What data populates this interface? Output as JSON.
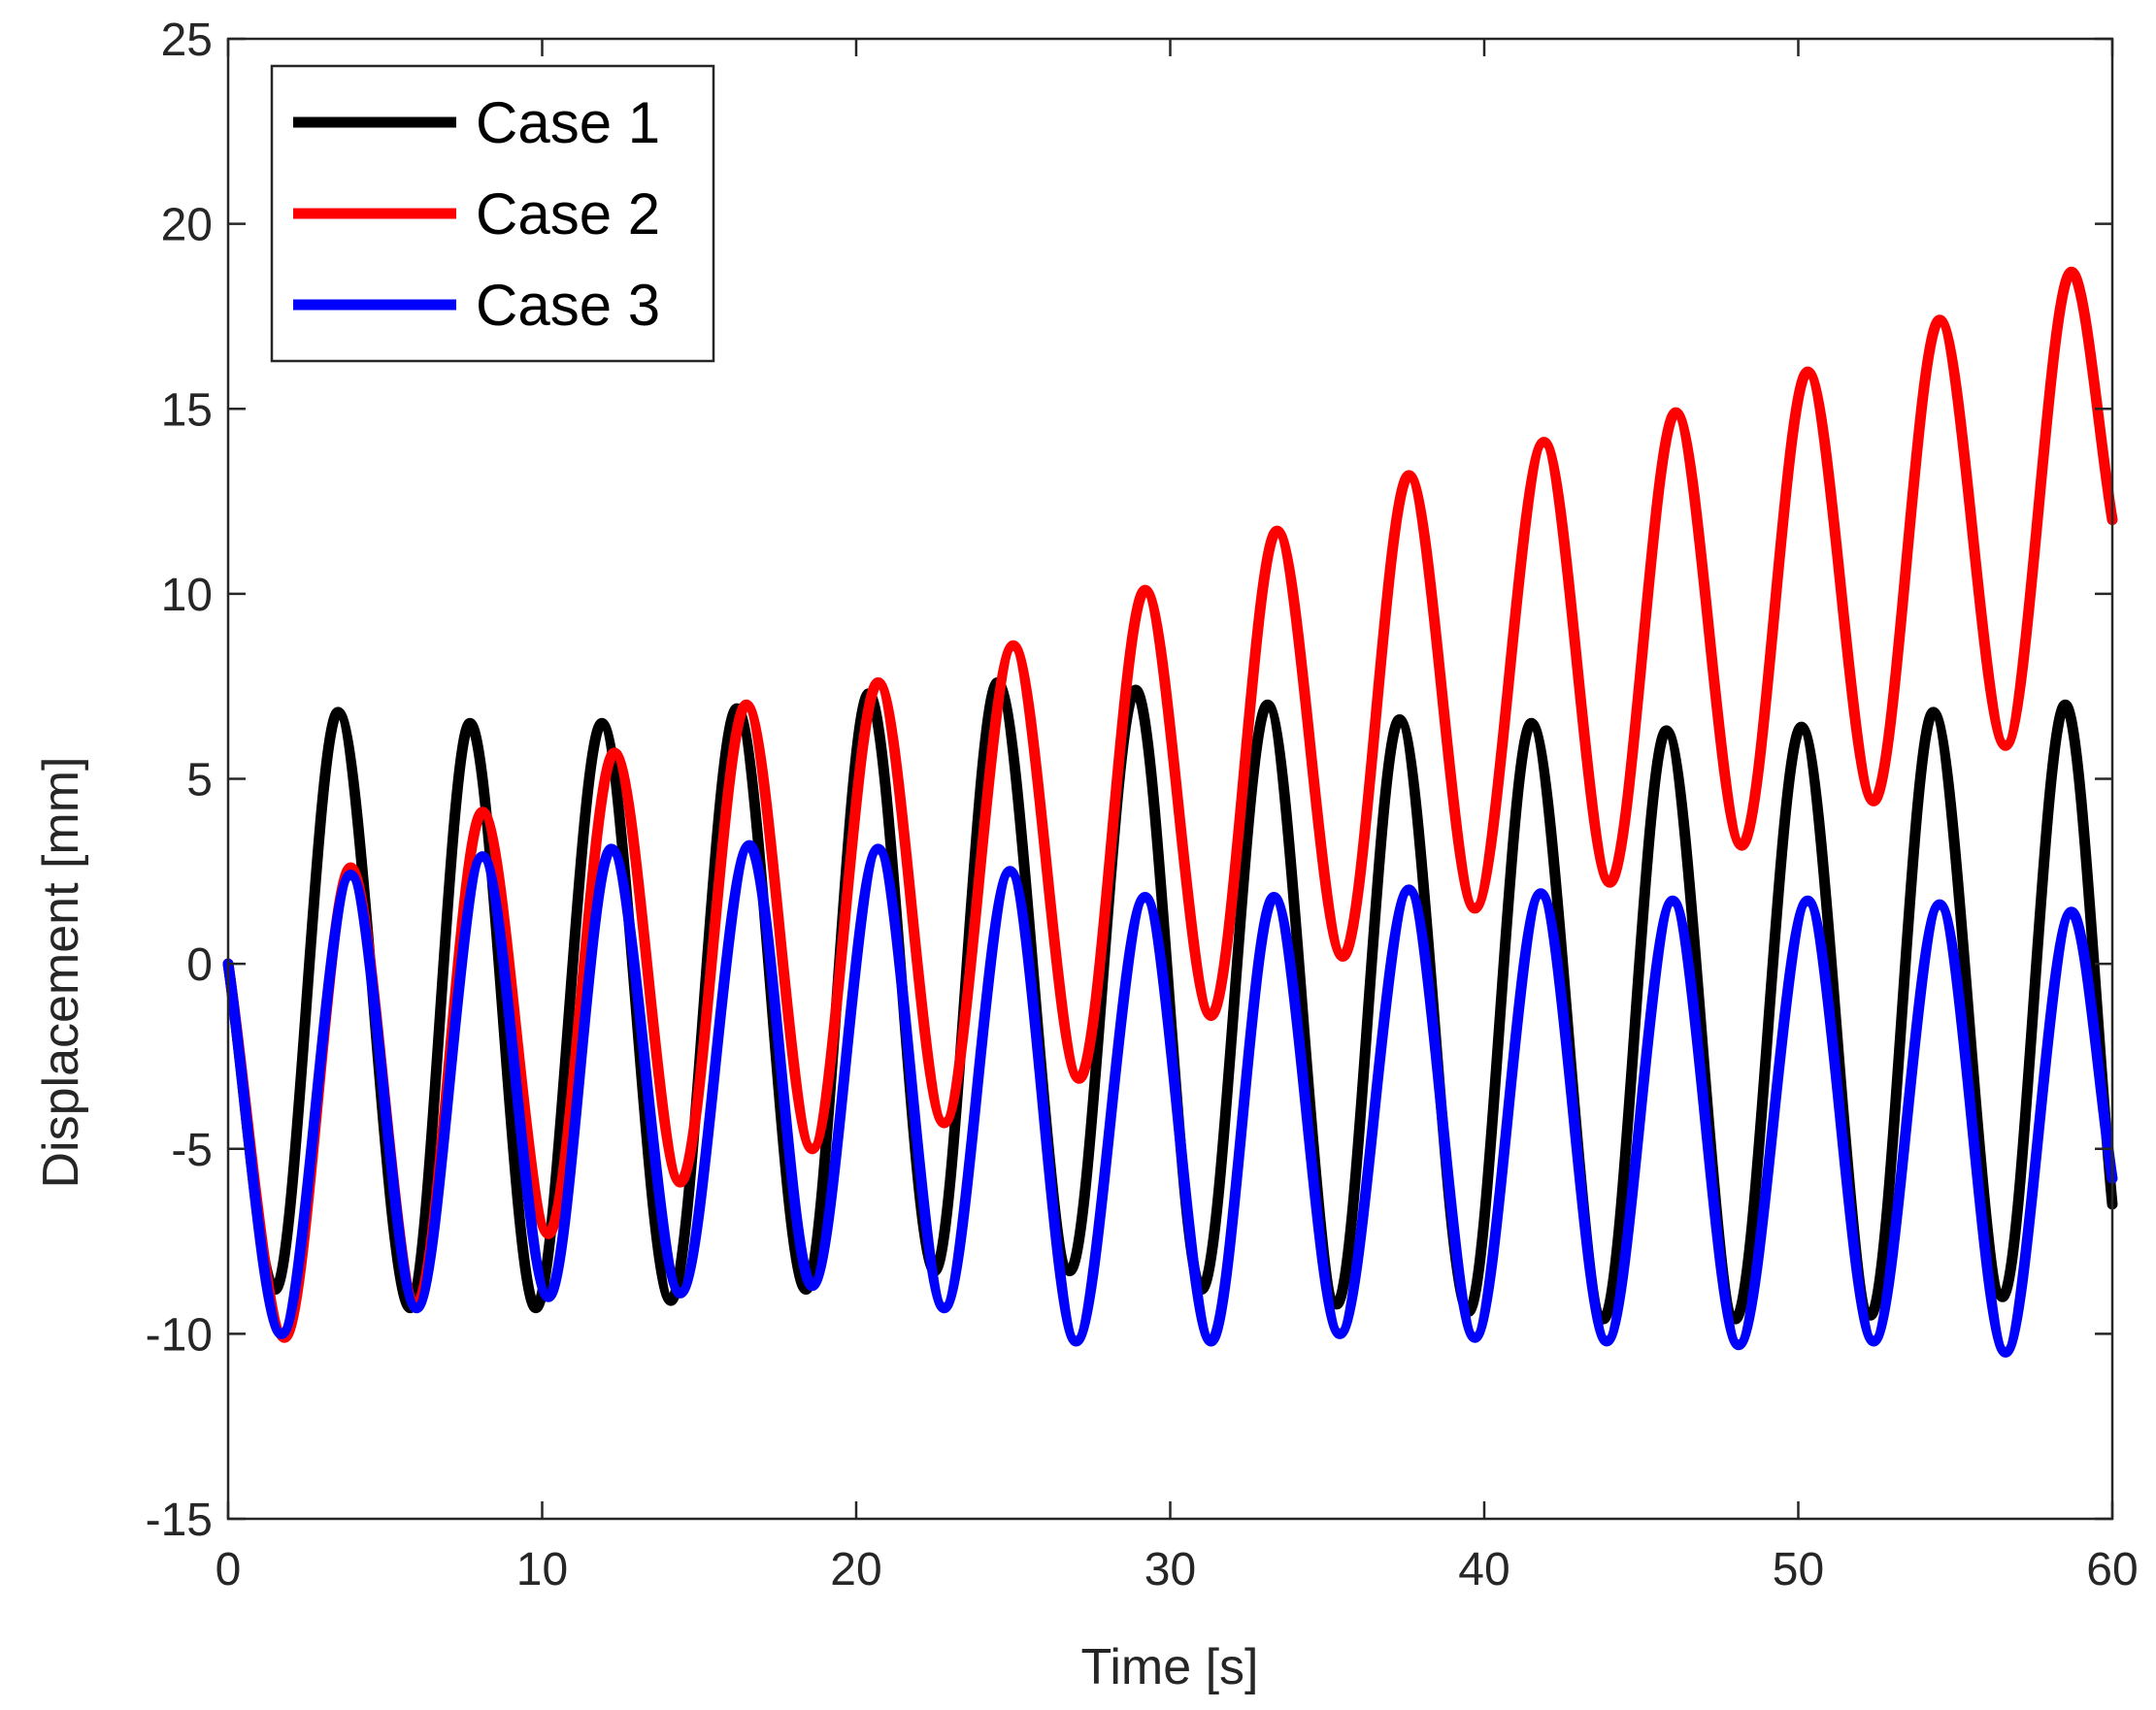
{
  "chart_data": {
    "type": "line",
    "title": "",
    "xlabel": "Time [s]",
    "ylabel": "Displacement [mm]",
    "xlim": [
      0,
      60
    ],
    "ylim": [
      -15,
      25
    ],
    "xticks": [
      0,
      10,
      20,
      30,
      40,
      50,
      60
    ],
    "yticks": [
      -15,
      -10,
      -5,
      0,
      5,
      10,
      15,
      20,
      25
    ],
    "grid": false,
    "legend_position": "top-left",
    "series": [
      {
        "name": "Case 1",
        "color": "#000000",
        "x": [
          0,
          1.5,
          3.5,
          5.8,
          7.7,
          9.8,
          11.9,
          14.1,
          16.2,
          18.4,
          20.4,
          22.5,
          24.5,
          26.8,
          28.9,
          31.0,
          33.1,
          35.3,
          37.3,
          39.5,
          41.5,
          43.8,
          45.8,
          48.0,
          50.1,
          52.3,
          54.3,
          56.5,
          58.5,
          60.0
        ],
        "values": [
          0,
          -8.8,
          6.8,
          -9.3,
          6.5,
          -9.3,
          6.5,
          -9.1,
          6.9,
          -8.8,
          7.3,
          -8.3,
          7.6,
          -8.3,
          7.4,
          -8.8,
          7.0,
          -9.2,
          6.6,
          -9.4,
          6.5,
          -9.6,
          6.3,
          -9.6,
          6.4,
          -9.5,
          6.8,
          -9.0,
          7.0,
          -6.5
        ]
      },
      {
        "name": "Case 2",
        "color": "#ff0000",
        "x": [
          0,
          1.8,
          3.9,
          6.0,
          8.1,
          10.2,
          12.3,
          14.4,
          16.5,
          18.6,
          20.7,
          22.8,
          25.0,
          27.1,
          29.2,
          31.3,
          33.4,
          35.5,
          37.6,
          39.7,
          41.9,
          44.0,
          46.1,
          48.2,
          50.3,
          52.4,
          54.5,
          56.6,
          58.7,
          60.0
        ],
        "values": [
          0,
          -10.1,
          2.6,
          -9.2,
          4.1,
          -7.3,
          5.7,
          -5.9,
          7.0,
          -5.0,
          7.6,
          -4.3,
          8.6,
          -3.1,
          10.1,
          -1.4,
          11.7,
          0.2,
          13.2,
          1.5,
          14.1,
          2.2,
          14.9,
          3.2,
          16.0,
          4.4,
          17.4,
          5.9,
          18.7,
          12.0
        ]
      },
      {
        "name": "Case 3",
        "color": "#0000ff",
        "x": [
          0,
          1.7,
          3.9,
          6.0,
          8.1,
          10.2,
          12.2,
          14.4,
          16.6,
          18.6,
          20.7,
          22.8,
          24.9,
          27.0,
          29.2,
          31.3,
          33.3,
          35.4,
          37.6,
          39.7,
          41.8,
          43.9,
          46.0,
          48.1,
          50.3,
          52.4,
          54.5,
          56.6,
          58.7,
          60.0
        ],
        "values": [
          0,
          -10.0,
          2.4,
          -9.3,
          2.9,
          -9.0,
          3.1,
          -8.9,
          3.2,
          -8.7,
          3.1,
          -9.3,
          2.5,
          -10.2,
          1.8,
          -10.2,
          1.8,
          -10.0,
          2.0,
          -10.1,
          1.9,
          -10.2,
          1.7,
          -10.3,
          1.7,
          -10.2,
          1.6,
          -10.5,
          1.4,
          -5.8
        ]
      }
    ]
  }
}
